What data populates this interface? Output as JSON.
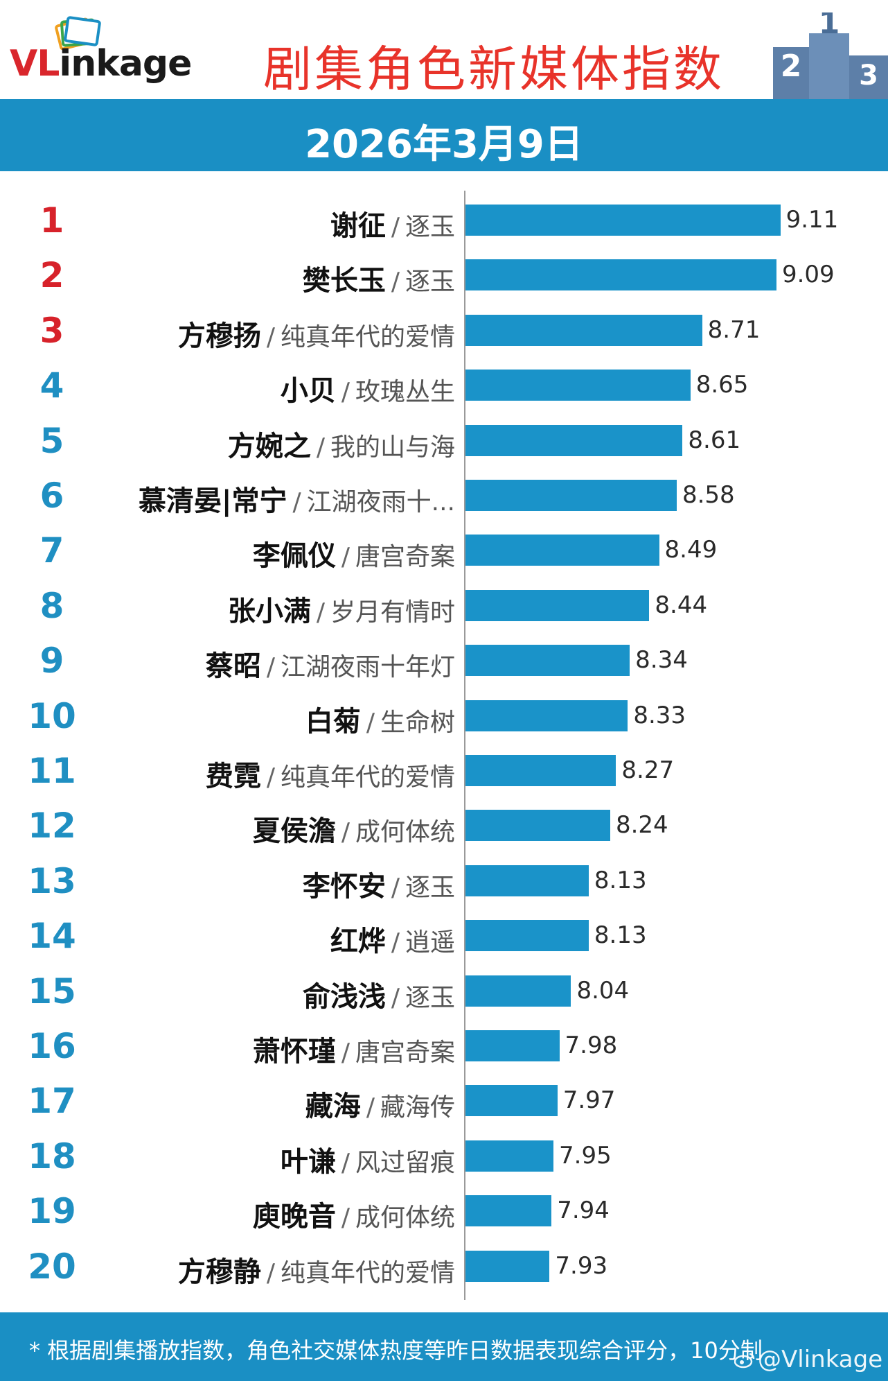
{
  "header": {
    "logo_prefix": "VL",
    "logo_rest": "inkage",
    "title": "剧集角色新媒体指数",
    "date": "2026年3月9日"
  },
  "chart_data": {
    "type": "bar",
    "orientation": "horizontal",
    "title": "剧集角色新媒体指数",
    "subtitle": "2026年3月9日",
    "ylim": [
      7.5,
      9.2
    ],
    "rows": [
      {
        "rank": "1",
        "name": "谢征",
        "show": "逐玉",
        "value": 9.11,
        "value_label": "9.11"
      },
      {
        "rank": "2",
        "name": "樊长玉",
        "show": "逐玉",
        "value": 9.09,
        "value_label": "9.09"
      },
      {
        "rank": "3",
        "name": "方穆扬",
        "show": "纯真年代的爱情",
        "value": 8.71,
        "value_label": "8.71"
      },
      {
        "rank": "4",
        "name": "小贝",
        "show": "玫瑰丛生",
        "value": 8.65,
        "value_label": "8.65"
      },
      {
        "rank": "5",
        "name": "方婉之",
        "show": "我的山与海",
        "value": 8.61,
        "value_label": "8.61"
      },
      {
        "rank": "6",
        "name": "慕清晏|常宁",
        "show": "江湖夜雨十...",
        "value": 8.58,
        "value_label": "8.58"
      },
      {
        "rank": "7",
        "name": "李佩仪",
        "show": "唐宫奇案",
        "value": 8.49,
        "value_label": "8.49"
      },
      {
        "rank": "8",
        "name": "张小满",
        "show": "岁月有情时",
        "value": 8.44,
        "value_label": "8.44"
      },
      {
        "rank": "9",
        "name": "蔡昭",
        "show": "江湖夜雨十年灯",
        "value": 8.34,
        "value_label": "8.34"
      },
      {
        "rank": "10",
        "name": "白菊",
        "show": "生命树",
        "value": 8.33,
        "value_label": "8.33"
      },
      {
        "rank": "11",
        "name": "费霓",
        "show": "纯真年代的爱情",
        "value": 8.27,
        "value_label": "8.27"
      },
      {
        "rank": "12",
        "name": "夏侯澹",
        "show": "成何体统",
        "value": 8.24,
        "value_label": "8.24"
      },
      {
        "rank": "13",
        "name": "李怀安",
        "show": "逐玉",
        "value": 8.13,
        "value_label": "8.13"
      },
      {
        "rank": "14",
        "name": "红烨",
        "show": "逍遥",
        "value": 8.13,
        "value_label": "8.13"
      },
      {
        "rank": "15",
        "name": "俞浅浅",
        "show": "逐玉",
        "value": 8.04,
        "value_label": "8.04"
      },
      {
        "rank": "16",
        "name": "萧怀瑾",
        "show": "唐宫奇案",
        "value": 7.98,
        "value_label": "7.98"
      },
      {
        "rank": "17",
        "name": "藏海",
        "show": "藏海传",
        "value": 7.97,
        "value_label": "7.97"
      },
      {
        "rank": "18",
        "name": "叶谦",
        "show": "风过留痕",
        "value": 7.95,
        "value_label": "7.95"
      },
      {
        "rank": "19",
        "name": "庾晚音",
        "show": "成何体统",
        "value": 7.94,
        "value_label": "7.94"
      },
      {
        "rank": "20",
        "name": "方穆静",
        "show": "纯真年代的爱情",
        "value": 7.93,
        "value_label": "7.93"
      }
    ]
  },
  "footer": {
    "note": "* 根据剧集播放指数，角色社交媒体热度等昨日数据表现综合评分，10分制",
    "watermark": "@Vlinkage"
  },
  "colors": {
    "accent_blue": "#1a8fc4",
    "bar_blue": "#1a93c9",
    "title_red": "#e8332a",
    "top_rank_red": "#d7222a"
  },
  "icons": {
    "logo": "cards-logo-icon",
    "podium": "podium-icon",
    "weibo": "weibo-icon"
  }
}
